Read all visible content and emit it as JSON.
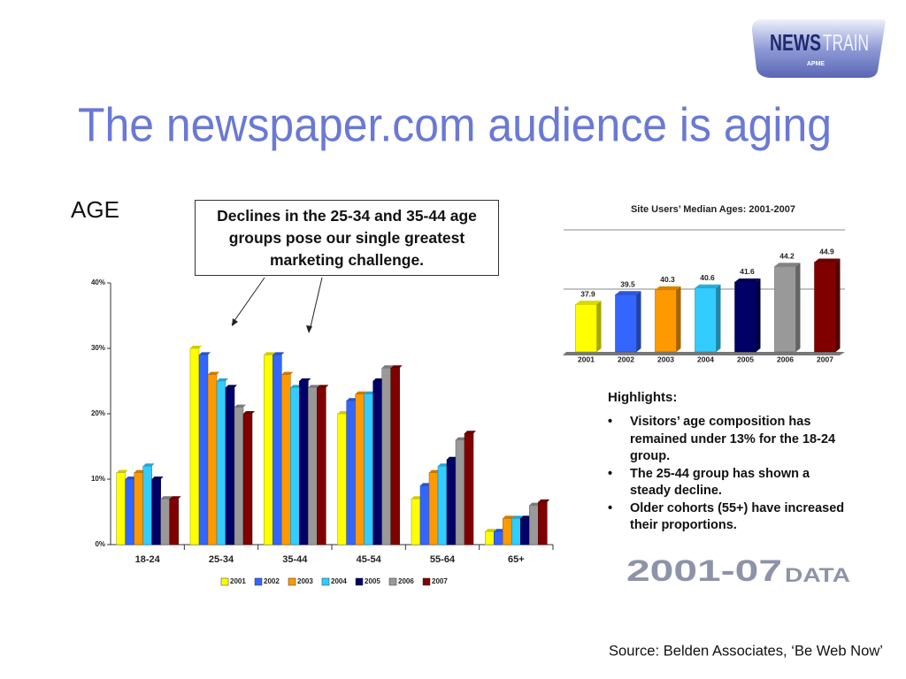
{
  "logo": {
    "word1": "NEWS",
    "word2": "TRAIN",
    "sub": "APME"
  },
  "title": "The newspaper.com audience is aging",
  "age_label": "AGE",
  "callout": "Declines in the 25-34 and 35-44 age groups pose our single greatest marketing challenge.",
  "highlights": {
    "heading": "Highlights:",
    "items": [
      "Visitors’ age composition has remained under 13% for the 18-24 group.",
      "The 25-44 group has shown a steady decline.",
      "Older cohorts (55+) have increased their proportions."
    ]
  },
  "data_badge": {
    "years": "2001-07",
    "word": "DATA"
  },
  "source": "Source:  Belden Associates, ‘Be Web Now’",
  "chart_data": [
    {
      "type": "grouped-bar",
      "categories": [
        "18-24",
        "25-34",
        "35-44",
        "45-54",
        "55-64",
        "65+"
      ],
      "series": [
        {
          "name": "2001",
          "color": "#ffff00",
          "values": [
            11,
            30,
            29,
            20,
            7,
            2
          ]
        },
        {
          "name": "2002",
          "color": "#3366ff",
          "values": [
            10,
            29,
            29,
            22,
            9,
            2
          ]
        },
        {
          "name": "2003",
          "color": "#ff9900",
          "values": [
            11,
            26,
            26,
            23,
            11,
            4
          ]
        },
        {
          "name": "2004",
          "color": "#33ccff",
          "values": [
            12,
            25,
            24,
            23,
            12,
            4
          ]
        },
        {
          "name": "2005",
          "color": "#000066",
          "values": [
            10,
            24,
            25,
            25,
            13,
            4
          ]
        },
        {
          "name": "2006",
          "color": "#999999",
          "values": [
            7,
            21,
            24,
            27,
            16,
            6
          ]
        },
        {
          "name": "2007",
          "color": "#800000",
          "values": [
            7,
            20,
            24,
            27,
            17,
            6.5
          ]
        }
      ],
      "ylim": [
        0,
        40
      ],
      "yticks": [
        {
          "value": 0,
          "label": "0%"
        },
        {
          "value": 10,
          "label": "10%"
        },
        {
          "value": 20,
          "label": "20%"
        },
        {
          "value": 30,
          "label": "30%"
        },
        {
          "value": 40,
          "label": "40%"
        }
      ],
      "legend": "bottom"
    },
    {
      "type": "bar",
      "title": "Site Users’ Median Ages:   2001-2007",
      "categories": [
        "2001",
        "2002",
        "2003",
        "2004",
        "2005",
        "2006",
        "2007"
      ],
      "values": [
        37.9,
        39.5,
        40.3,
        40.6,
        41.6,
        44.2,
        44.9
      ],
      "colors": [
        "#ffff00",
        "#3366ff",
        "#ff9900",
        "#33ccff",
        "#000066",
        "#999999",
        "#800000"
      ],
      "ylim": [
        30,
        46
      ]
    }
  ]
}
